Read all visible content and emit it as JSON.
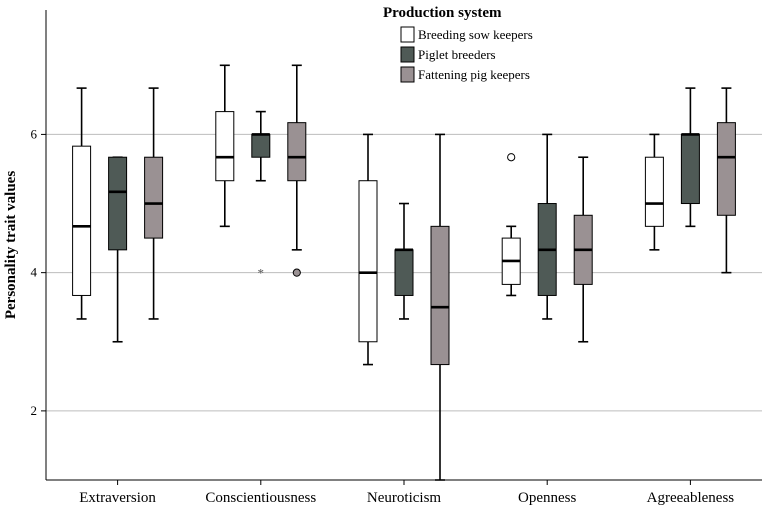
{
  "chart_data": {
    "type": "boxplot",
    "title": "",
    "ylabel": "Personality trait values",
    "xlabel": "",
    "ylim": [
      1,
      7.8
    ],
    "yticks": [
      2,
      4,
      6
    ],
    "grid": true,
    "legend": {
      "title": "Production system",
      "position": "top-center"
    },
    "categories": [
      "Extraversion",
      "Conscientiousness",
      "Neuroticism",
      "Openness",
      "Agreeableness"
    ],
    "series": [
      {
        "name": "Breeding sow keepers",
        "color": "#ffffff",
        "boxes": [
          {
            "whisker_low": 3.33,
            "q1": 3.67,
            "median": 4.67,
            "q3": 5.83,
            "whisker_high": 6.67,
            "outliers": [],
            "extremes": []
          },
          {
            "whisker_low": 4.67,
            "q1": 5.33,
            "median": 5.67,
            "q3": 6.33,
            "whisker_high": 7.0,
            "outliers": [],
            "extremes": []
          },
          {
            "whisker_low": 2.67,
            "q1": 3.0,
            "median": 4.0,
            "q3": 5.33,
            "whisker_high": 6.0,
            "outliers": [],
            "extremes": []
          },
          {
            "whisker_low": 3.67,
            "q1": 3.83,
            "median": 4.17,
            "q3": 4.5,
            "whisker_high": 4.67,
            "outliers": [
              5.67
            ],
            "extremes": []
          },
          {
            "whisker_low": 4.33,
            "q1": 4.67,
            "median": 5.0,
            "q3": 5.67,
            "whisker_high": 6.0,
            "outliers": [],
            "extremes": []
          }
        ]
      },
      {
        "name": "Piglet breeders",
        "color": "#4f5a56",
        "boxes": [
          {
            "whisker_low": 3.0,
            "q1": 4.33,
            "median": 5.17,
            "q3": 5.67,
            "whisker_high": 5.67,
            "outliers": [],
            "extremes": []
          },
          {
            "whisker_low": 5.33,
            "q1": 5.67,
            "median": 6.0,
            "q3": 6.0,
            "whisker_high": 6.33,
            "outliers": [],
            "extremes": [
              4.0
            ]
          },
          {
            "whisker_low": 3.33,
            "q1": 3.67,
            "median": 4.33,
            "q3": 4.33,
            "whisker_high": 5.0,
            "outliers": [],
            "extremes": []
          },
          {
            "whisker_low": 3.33,
            "q1": 3.67,
            "median": 4.33,
            "q3": 5.0,
            "whisker_high": 6.0,
            "outliers": [],
            "extremes": []
          },
          {
            "whisker_low": 4.67,
            "q1": 5.0,
            "median": 6.0,
            "q3": 6.0,
            "whisker_high": 6.67,
            "outliers": [],
            "extremes": []
          }
        ]
      },
      {
        "name": "Fattening pig keepers",
        "color": "#9a9193",
        "boxes": [
          {
            "whisker_low": 3.33,
            "q1": 4.5,
            "median": 5.0,
            "q3": 5.67,
            "whisker_high": 6.67,
            "outliers": [],
            "extremes": []
          },
          {
            "whisker_low": 4.33,
            "q1": 5.33,
            "median": 5.67,
            "q3": 6.17,
            "whisker_high": 7.0,
            "outliers": [
              4.0
            ],
            "extremes": []
          },
          {
            "whisker_low": 1.0,
            "q1": 2.67,
            "median": 3.5,
            "q3": 4.67,
            "whisker_high": 6.0,
            "outliers": [],
            "extremes": []
          },
          {
            "whisker_low": 3.0,
            "q1": 3.83,
            "median": 4.33,
            "q3": 4.83,
            "whisker_high": 5.67,
            "outliers": [],
            "extremes": []
          },
          {
            "whisker_low": 4.0,
            "q1": 4.83,
            "median": 5.67,
            "q3": 6.17,
            "whisker_high": 6.67,
            "outliers": [],
            "extremes": []
          }
        ]
      }
    ]
  }
}
